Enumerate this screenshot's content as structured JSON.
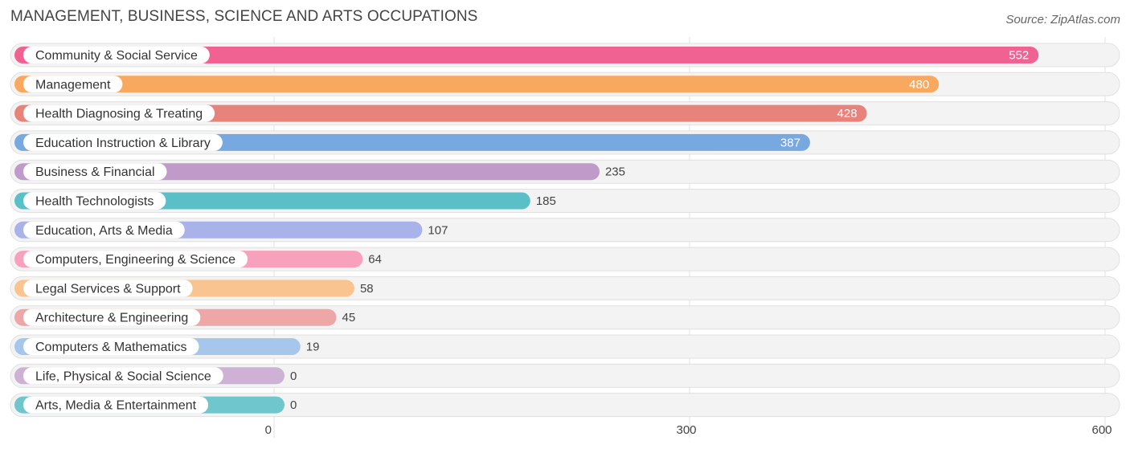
{
  "header": {
    "title": "MANAGEMENT, BUSINESS, SCIENCE AND ARTS OCCUPATIONS",
    "source": "Source: ZipAtlas.com"
  },
  "chart_data": {
    "type": "bar",
    "orientation": "horizontal",
    "title": "MANAGEMENT, BUSINESS, SCIENCE AND ARTS OCCUPATIONS",
    "categories": [
      "Community & Social Service",
      "Management",
      "Health Diagnosing & Treating",
      "Education Instruction & Library",
      "Business & Financial",
      "Health Technologists",
      "Education, Arts & Media",
      "Computers, Engineering & Science",
      "Legal Services & Support",
      "Architecture & Engineering",
      "Computers & Mathematics",
      "Life, Physical & Social Science",
      "Arts, Media & Entertainment"
    ],
    "values": [
      552,
      480,
      428,
      387,
      235,
      185,
      107,
      64,
      58,
      45,
      19,
      0,
      0
    ],
    "value_labels": [
      "552",
      "480",
      "428",
      "387",
      "235",
      "185",
      "107",
      "64",
      "58",
      "45",
      "19",
      "0",
      "0"
    ],
    "colors": [
      "#f06292",
      "#f9a95f",
      "#e8837c",
      "#78a8e0",
      "#c09ac8",
      "#5bbfc8",
      "#a9b3ea",
      "#f7a1bd",
      "#f9c48f",
      "#eea6a6",
      "#a6c6ec",
      "#cfb1d6",
      "#6fc6cc"
    ],
    "xlim": [
      0,
      600
    ],
    "xticks": [
      0,
      300,
      600
    ],
    "xtick_labels": [
      "0",
      "300",
      "600"
    ],
    "grid": true,
    "legend": "none"
  }
}
